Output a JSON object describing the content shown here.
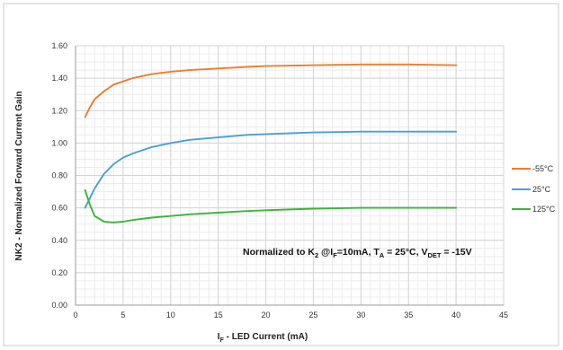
{
  "chart_data": {
    "type": "line",
    "title": "",
    "xlabel": {
      "main": "I",
      "sub": "F",
      "rest": " - LED Current (mA)"
    },
    "ylabel": "NK2 - Normalized Forward Current Gain",
    "xlim": [
      0,
      45
    ],
    "ylim": [
      0,
      1.6
    ],
    "x_ticks": [
      "0",
      "5",
      "10",
      "15",
      "20",
      "25",
      "30",
      "35",
      "40",
      "45"
    ],
    "y_ticks": [
      "0.00",
      "0.20",
      "0.40",
      "0.60",
      "0.80",
      "1.00",
      "1.20",
      "1.40",
      "1.60"
    ],
    "grid": true,
    "legend_position": "right",
    "annotation": {
      "t1": "Normalized to K",
      "t1_sub": "2",
      "t2": " @I",
      "t2_sub": "F",
      "t3": "=10mA, T",
      "t3_sub": "A",
      "t4": " = 25°C, V",
      "t4_sub": "DET",
      "t5": " = -15V"
    },
    "series": [
      {
        "name": "-55°C",
        "color": "#ED7D31",
        "x": [
          1,
          1.5,
          2,
          3,
          4,
          5,
          6,
          8,
          10,
          12,
          15,
          18,
          20,
          25,
          30,
          35,
          40
        ],
        "y": [
          1.16,
          1.22,
          1.27,
          1.32,
          1.36,
          1.38,
          1.4,
          1.425,
          1.44,
          1.45,
          1.46,
          1.47,
          1.475,
          1.48,
          1.485,
          1.485,
          1.48
        ]
      },
      {
        "name": "25°C",
        "color": "#4AA0D5",
        "x": [
          1,
          1.5,
          2,
          3,
          4,
          5,
          6,
          8,
          10,
          12,
          15,
          18,
          20,
          25,
          30,
          35,
          40
        ],
        "y": [
          0.6,
          0.66,
          0.72,
          0.81,
          0.87,
          0.91,
          0.935,
          0.975,
          1.0,
          1.02,
          1.035,
          1.05,
          1.055,
          1.065,
          1.07,
          1.07,
          1.07
        ]
      },
      {
        "name": "125°C",
        "color": "#3CB43C",
        "x": [
          1,
          1.5,
          2,
          3,
          4,
          5,
          6,
          8,
          10,
          12,
          15,
          18,
          20,
          25,
          30,
          35,
          40
        ],
        "y": [
          0.71,
          0.62,
          0.55,
          0.515,
          0.51,
          0.515,
          0.525,
          0.54,
          0.55,
          0.56,
          0.57,
          0.58,
          0.585,
          0.595,
          0.6,
          0.6,
          0.6
        ]
      }
    ]
  }
}
